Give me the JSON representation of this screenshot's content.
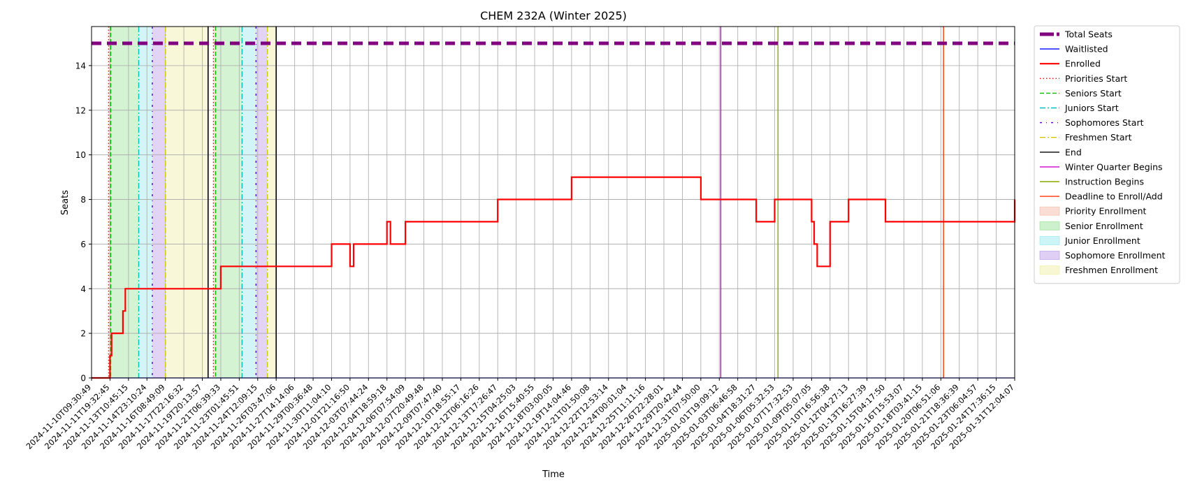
{
  "chart_data": {
    "type": "line",
    "title": "CHEM 232A (Winter 2025)",
    "xlabel": "Time",
    "ylabel": "Seats",
    "ylim": [
      0,
      15.75
    ],
    "yticks": [
      0,
      2,
      4,
      6,
      8,
      10,
      12,
      14
    ],
    "grid": true,
    "legend_position": "outside-right",
    "x_ticks": [
      "2024-11-10T09:30:49",
      "2024-11-11T19:32:45",
      "2024-11-13T10:45:15",
      "2024-11-14T23:10:24",
      "2024-11-16T08:49:09",
      "2024-11-17T22:16:32",
      "2024-11-19T20:13:57",
      "2024-11-21T06:39:33",
      "2024-11-23T01:45:51",
      "2024-11-24T12:09:15",
      "2024-11-26T03:47:06",
      "2024-11-27T14:14:06",
      "2024-11-29T00:36:48",
      "2024-11-30T11:04:10",
      "2024-12-01T21:16:50",
      "2024-12-03T07:44:24",
      "2024-12-04T18:59:18",
      "2024-12-06T07:54:09",
      "2024-12-07T20:49:48",
      "2024-12-09T07:47:40",
      "2024-12-10T18:55:17",
      "2024-12-12T06:16:26",
      "2024-12-13T17:26:47",
      "2024-12-15T04:25:03",
      "2024-12-16T15:40:55",
      "2024-12-18T03:00:05",
      "2024-12-19T14:04:46",
      "2024-12-21T01:50:08",
      "2024-12-22T12:53:14",
      "2024-12-24T00:01:04",
      "2024-12-25T11:11:16",
      "2024-12-26T22:28:01",
      "2024-12-29T20:42:44",
      "2024-12-31T07:50:00",
      "2025-01-01T19:09:12",
      "2025-01-03T06:46:58",
      "2025-01-04T18:31:27",
      "2025-01-06T05:32:53",
      "2025-01-07T17:32:53",
      "2025-01-09T05:07:05",
      "2025-01-10T16:56:38",
      "2025-01-12T04:27:13",
      "2025-01-13T16:27:39",
      "2025-01-15T04:17:50",
      "2025-01-16T15:53:07",
      "2025-01-18T03:41:15",
      "2025-01-20T06:51:06",
      "2025-01-21T18:36:39",
      "2025-01-23T06:04:57",
      "2025-01-24T17:36:15",
      "2025-01-31T12:04:07"
    ],
    "series": [
      {
        "name": "Total Seats",
        "color": "#800080",
        "style": "dashed-thick",
        "x": [
          "2024-11-10T09:30:49",
          "2025-01-31T12:04:07"
        ],
        "y": [
          15,
          15
        ]
      },
      {
        "name": "Waitlisted",
        "color": "#0000ff",
        "style": "solid",
        "x": [
          "2024-11-10T09:30:49",
          "2025-01-31T12:04:07"
        ],
        "y": [
          0,
          0
        ]
      },
      {
        "name": "Enrolled",
        "color": "#ff0000",
        "style": "step",
        "x": [
          "2024-11-10T09:30:49",
          "2024-11-11T19:32:45",
          "2024-11-11T23:00:00",
          "2024-11-12T06:00:00",
          "2024-11-12T23:00:00",
          "2024-11-13T04:00:00",
          "2024-11-21T06:39:33",
          "2024-11-30T11:04:10",
          "2024-12-01T21:16:50",
          "2024-12-02T04:00:00",
          "2024-12-04T18:59:18",
          "2024-12-05T02:00:00",
          "2024-12-06T07:54:09",
          "2024-12-13T17:26:47",
          "2024-12-19T14:04:46",
          "2024-12-31T07:50:00",
          "2025-01-04T18:31:27",
          "2025-01-06T05:32:53",
          "2025-01-09T05:07:05",
          "2025-01-09T10:00:00",
          "2025-01-09T16:00:00",
          "2025-01-10T16:56:38",
          "2025-01-12T04:27:13",
          "2025-01-15T04:17:50",
          "2025-01-31T12:04:07"
        ],
        "y": [
          0,
          1,
          2,
          2,
          3,
          4,
          5,
          6,
          5,
          6,
          7,
          6,
          7,
          8,
          9,
          8,
          7,
          8,
          7,
          6,
          5,
          7,
          8,
          7,
          8
        ]
      }
    ],
    "enrolled_levels_final": [
      0,
      1,
      2,
      3,
      4,
      5,
      6,
      5,
      6,
      7,
      6,
      7,
      8,
      9,
      8,
      7,
      8,
      7,
      6,
      5,
      7,
      8,
      7,
      8
    ],
    "vertical_markers": [
      {
        "name": "Priorities Start",
        "color": "#ff0000",
        "style": "dotted",
        "x": [
          "2024-11-11T17:00:00",
          "2024-11-20T17:00:00"
        ]
      },
      {
        "name": "Seniors Start",
        "color": "#00bb00",
        "style": "dashed",
        "x": [
          "2024-11-11T21:00:00",
          "2024-11-20T21:00:00"
        ]
      },
      {
        "name": "Juniors Start",
        "color": "#00bfbf",
        "style": "dashdot",
        "x": [
          "2024-11-14T07:00:00",
          "2024-11-23T07:00:00"
        ]
      },
      {
        "name": "Sophomores Start",
        "color": "#5500cc",
        "style": "dashdot-sparse",
        "x": [
          "2024-11-15T09:00:00",
          "2024-11-24T09:00:00"
        ]
      },
      {
        "name": "Freshmen Start",
        "color": "#d4c600",
        "style": "dashdot",
        "x": [
          "2024-11-16T09:00:00",
          "2024-11-25T09:00:00"
        ]
      },
      {
        "name": "End",
        "color": "#000000",
        "style": "solid",
        "x": [
          "2024-11-20T07:00:00",
          "2024-11-26T03:47:06"
        ]
      },
      {
        "name": "Winter Quarter Begins",
        "color": "#cc00cc",
        "style": "solid",
        "x": [
          "2025-01-01T22:00:00"
        ]
      },
      {
        "name": "Instruction Begins",
        "color": "#88aa00",
        "style": "solid",
        "x": [
          "2025-01-06T12:00:00"
        ]
      },
      {
        "name": "Deadline to Enroll/Add",
        "color": "#ff3300",
        "style": "solid",
        "x": [
          "2025-01-20T12:00:00"
        ]
      }
    ],
    "shaded_periods": [
      {
        "name": "Priority Enrollment",
        "color": "#f4b6a4",
        "ranges": [
          [
            "2024-11-11T17:00:00",
            "2024-11-11T21:00:00"
          ],
          [
            "2024-11-20T17:00:00",
            "2024-11-20T21:00:00"
          ]
        ]
      },
      {
        "name": "Senior Enrollment",
        "color": "#90e090",
        "ranges": [
          [
            "2024-11-11T21:00:00",
            "2024-11-14T07:00:00"
          ],
          [
            "2024-11-20T21:00:00",
            "2024-11-23T07:00:00"
          ]
        ]
      },
      {
        "name": "Junior Enrollment",
        "color": "#90e6ee",
        "ranges": [
          [
            "2024-11-14T07:00:00",
            "2024-11-15T09:00:00"
          ],
          [
            "2024-11-23T07:00:00",
            "2024-11-24T09:00:00"
          ]
        ]
      },
      {
        "name": "Sophomore Enrollment",
        "color": "#b894e6",
        "ranges": [
          [
            "2024-11-15T09:00:00",
            "2024-11-16T09:00:00"
          ],
          [
            "2024-11-24T09:00:00",
            "2024-11-25T09:00:00"
          ]
        ]
      },
      {
        "name": "Freshmen Enrollment",
        "color": "#eeee9e",
        "ranges": [
          [
            "2024-11-16T09:00:00",
            "2024-11-20T07:00:00"
          ],
          [
            "2024-11-25T09:00:00",
            "2024-11-26T03:47:06"
          ]
        ]
      }
    ],
    "legend": [
      {
        "label": "Total Seats",
        "color": "#800080",
        "kind": "line",
        "style": "dashed-thick"
      },
      {
        "label": "Waitlisted",
        "color": "#0000ff",
        "kind": "line",
        "style": "solid"
      },
      {
        "label": "Enrolled",
        "color": "#ff0000",
        "kind": "line",
        "style": "solid-thick"
      },
      {
        "label": "Priorities Start",
        "color": "#ff0000",
        "kind": "line",
        "style": "dotted"
      },
      {
        "label": "Seniors Start",
        "color": "#00bb00",
        "kind": "line",
        "style": "dashed"
      },
      {
        "label": "Juniors Start",
        "color": "#00bfbf",
        "kind": "line",
        "style": "dashdot"
      },
      {
        "label": "Sophomores Start",
        "color": "#5500cc",
        "kind": "line",
        "style": "dashdot-sparse"
      },
      {
        "label": "Freshmen Start",
        "color": "#d4c600",
        "kind": "line",
        "style": "dashdot"
      },
      {
        "label": "End",
        "color": "#000000",
        "kind": "line",
        "style": "solid"
      },
      {
        "label": "Winter Quarter Begins",
        "color": "#cc00cc",
        "kind": "line",
        "style": "solid"
      },
      {
        "label": "Instruction Begins",
        "color": "#88aa00",
        "kind": "line",
        "style": "solid"
      },
      {
        "label": "Deadline to Enroll/Add",
        "color": "#ff3300",
        "kind": "line",
        "style": "solid"
      },
      {
        "label": "Priority Enrollment",
        "color": "#f4b6a4",
        "kind": "patch"
      },
      {
        "label": "Senior Enrollment",
        "color": "#90e090",
        "kind": "patch"
      },
      {
        "label": "Junior Enrollment",
        "color": "#90e6ee",
        "kind": "patch"
      },
      {
        "label": "Sophomore Enrollment",
        "color": "#b894e6",
        "kind": "patch"
      },
      {
        "label": "Freshmen Enrollment",
        "color": "#eeee9e",
        "kind": "patch"
      }
    ]
  }
}
